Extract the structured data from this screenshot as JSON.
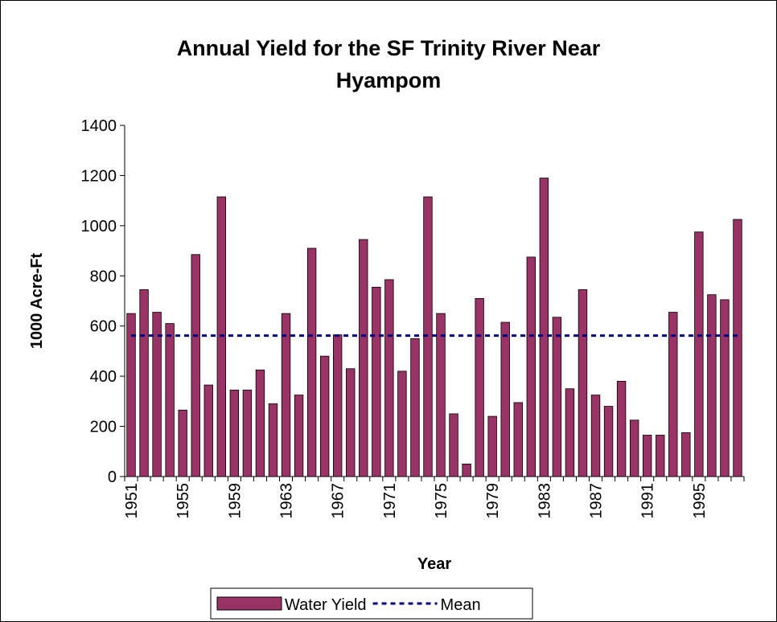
{
  "chart_data": {
    "type": "bar",
    "title": "Annual Yield for the SF Trinity River Near Hyampom",
    "x_label": "Year",
    "y_label": "1000 Acre-Ft",
    "categories": [
      "1951",
      null,
      null,
      null,
      "1955",
      null,
      null,
      null,
      "1959",
      null,
      null,
      null,
      "1963",
      null,
      null,
      null,
      "1967",
      null,
      null,
      null,
      "1971",
      null,
      null,
      null,
      "1975",
      null,
      null,
      null,
      "1979",
      null,
      null,
      null,
      "1983",
      null,
      null,
      null,
      "1987",
      null,
      null,
      null,
      "1991",
      null,
      null,
      null,
      "1995",
      null,
      null,
      null
    ],
    "series": [
      {
        "name": "Water Yield",
        "color": "#993366",
        "type": "bar",
        "values": [
          650,
          745,
          655,
          610,
          265,
          885,
          365,
          1115,
          345,
          345,
          425,
          290,
          650,
          325,
          910,
          480,
          565,
          430,
          945,
          755,
          785,
          420,
          550,
          1115,
          650,
          250,
          50,
          710,
          240,
          615,
          295,
          875,
          1190,
          635,
          350,
          745,
          325,
          280,
          380,
          225,
          165,
          165,
          655,
          175,
          975,
          725,
          705,
          1025
        ]
      },
      {
        "name": "Mean",
        "color": "#000080",
        "type": "line",
        "values": [
          562,
          562,
          562,
          562,
          562,
          562,
          562,
          562,
          562,
          562,
          562,
          562,
          562,
          562,
          562,
          562,
          562,
          562,
          562,
          562,
          562,
          562,
          562,
          562,
          562,
          562,
          562,
          562,
          562,
          562,
          562,
          562,
          562,
          562,
          562,
          562,
          562,
          562,
          562,
          562,
          562,
          562,
          562,
          562,
          562,
          562,
          562,
          562
        ]
      }
    ],
    "ylim": [
      0,
      1400
    ],
    "yticks": [
      0,
      200,
      400,
      600,
      800,
      1000,
      1200,
      1400
    ],
    "legend": "bottom"
  }
}
